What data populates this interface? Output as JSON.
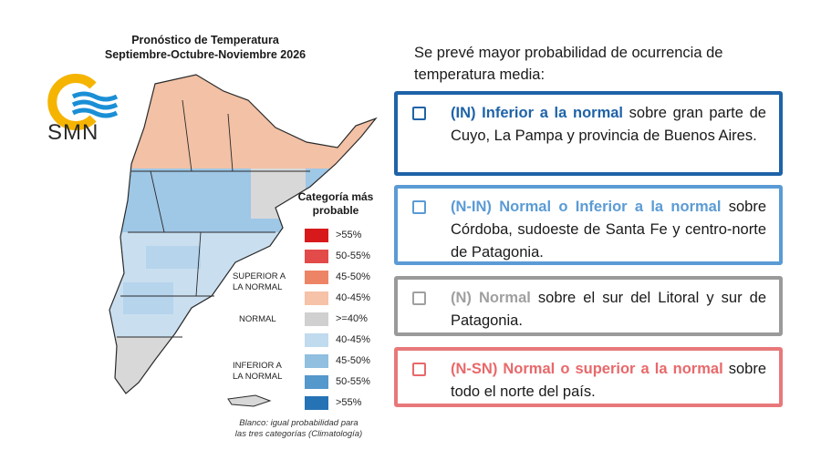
{
  "map": {
    "title_line1": "Pronóstico de Temperatura",
    "title_line2": "Septiembre-Octubre-Noviembre 2026",
    "logo_text": "SMN",
    "legend_title_line1": "Categoría más",
    "legend_title_line2": "probable",
    "groups": [
      {
        "line1": "SUPERIOR A",
        "line2": "LA NORMAL"
      },
      {
        "line1": "NORMAL",
        "line2": ""
      },
      {
        "line1": "INFERIOR A",
        "line2": "LA NORMAL"
      }
    ],
    "legend": [
      {
        "label": ">55%",
        "color": "#d7191c"
      },
      {
        "label": "50-55%",
        "color": "#e34a4a"
      },
      {
        "label": "45-50%",
        "color": "#ee8466"
      },
      {
        "label": "40-45%",
        "color": "#f6c2a8"
      },
      {
        "label": ">=40%",
        "color": "#d0d0d0"
      },
      {
        "label": "40-45%",
        "color": "#c0daee"
      },
      {
        "label": "45-50%",
        "color": "#90bfe0"
      },
      {
        "label": "50-55%",
        "color": "#5598cc"
      },
      {
        "label": ">55%",
        "color": "#2573b4"
      }
    ],
    "note_line1": "Blanco: igual probabilidad para",
    "note_line2": "las tres categorías (Climatología)"
  },
  "panel": {
    "intro": "Se prevé mayor probabilidad de ocurrencia de temperatura media:",
    "items": [
      {
        "lead": "(IN) Inferior a la normal",
        "rest": " sobre gran parte de Cuyo, La Pampa y provincia de Buenos Aires.",
        "border": "#1f63a8",
        "lead_color": "#1f63a8"
      },
      {
        "lead": "(N-IN) Normal o Inferior a la normal",
        "rest": " sobre Córdoba, sudoeste de Santa Fe y centro-norte de Patagonia.",
        "border": "#5b9bd5",
        "lead_color": "#5b9bd5"
      },
      {
        "lead": "(N) Normal",
        "rest": " sobre el sur del Litoral y sur de Patagonia.",
        "border": "#9a9a9a",
        "lead_color": "#a0a0a0"
      },
      {
        "lead": "(N-SN) Normal o superior a la normal",
        "rest": " sobre todo el norte del país.",
        "border": "#e8787a",
        "lead_color": "#e8696b"
      }
    ]
  }
}
